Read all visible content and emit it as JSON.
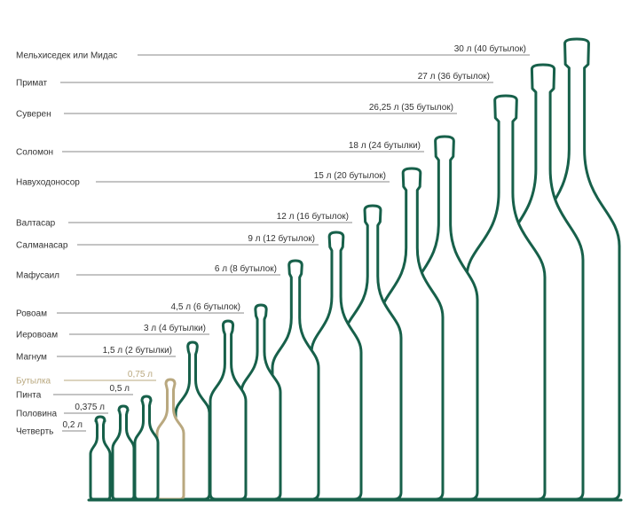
{
  "colors": {
    "bottle": "#17604a",
    "highlight": "#b9a87f",
    "leader": "#8a8a8a",
    "text": "#333333"
  },
  "bottles": [
    {
      "name": "Мельхиседек или Мидас",
      "volume": "30 л (40 бутылок)"
    },
    {
      "name": "Примат",
      "volume": "27 л (36 бутылок)"
    },
    {
      "name": "Суверен",
      "volume": "26,25 л (35 бутылок)"
    },
    {
      "name": "Соломон",
      "volume": "18 л (24 бутылки)"
    },
    {
      "name": "Навуходоносор",
      "volume": "15 л (20 бутылок)"
    },
    {
      "name": "Валтасар",
      "volume": "12 л (16 бутылок)"
    },
    {
      "name": "Салманасар",
      "volume": "9 л (12 бутылок)"
    },
    {
      "name": "Мафусаил",
      "volume": "6 л (8 бутылок)"
    },
    {
      "name": "Ровоам",
      "volume": "4,5 л (6 бутылок)"
    },
    {
      "name": "Иеровоам",
      "volume": "3 л (4 бутылки)"
    },
    {
      "name": "Магнум",
      "volume": "1,5 л (2 бутылки)"
    },
    {
      "name": "Бутылка",
      "volume": "0,75 л",
      "highlight": true
    },
    {
      "name": "Пинта",
      "volume": "0,5 л"
    },
    {
      "name": "Половина",
      "volume": "0,375 л"
    },
    {
      "name": "Четверть",
      "volume": "0,2 л"
    }
  ]
}
